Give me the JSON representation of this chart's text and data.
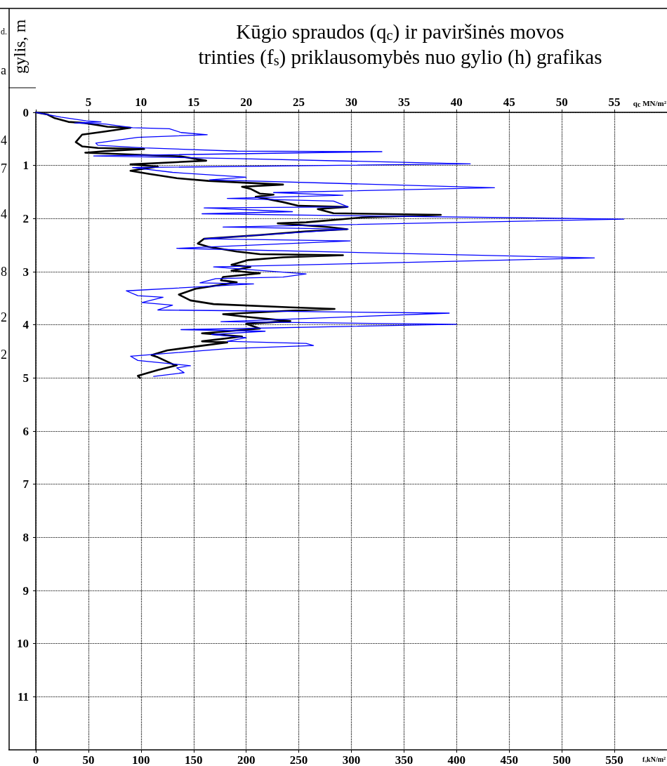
{
  "chart_data": {
    "type": "line",
    "orientation": "horizontal",
    "title": "Kūgio spraudos (q$_{c}$) ir paviršinės movos\ntrinties (f$_{s}$) priklausomybės nuo gylio (h) grafikas",
    "ylabel": "gylis, m",
    "xlabel": "f$_{s}$kN/m²",
    "x2label": "q$_{c}$ MN/m²",
    "annotations": [
      "d.",
      "a",
      "4",
      "7",
      "4",
      "8",
      "2",
      "2"
    ],
    "xlim": [
      0,
      600
    ],
    "xticks": [
      0,
      50,
      100,
      150,
      200,
      250,
      300,
      350,
      400,
      450,
      500,
      550
    ],
    "x2lim": [
      0,
      60
    ],
    "x2ticks": [
      {
        "value": 0,
        "label": null
      },
      5,
      10,
      15,
      20,
      25,
      30,
      35,
      40,
      45,
      50,
      55
    ],
    "ylim": [
      12,
      0
    ],
    "yticks": [
      0,
      1,
      2,
      3,
      4,
      5,
      6,
      7,
      8,
      9,
      10,
      11
    ],
    "grid": true,
    "marker": "none",
    "line_style": "solid",
    "series": [
      {
        "color": "#000000",
        "axis": "x2",
        "x": [
          0,
          0.04,
          0.11,
          0.18,
          0.2,
          0.24,
          0.27,
          0.29,
          0.36,
          0.42,
          0.56,
          0.64,
          0.67,
          0.69,
          0.73,
          0.76,
          0.83,
          0.91,
          0.98,
          1.02,
          1.1,
          1.16,
          1.24,
          1.29,
          1.36,
          1.4,
          1.44,
          1.53,
          1.55,
          1.59,
          1.69,
          1.76,
          1.78,
          1.82,
          1.9,
          1.93,
          1.98,
          2.07,
          2.09,
          2.16,
          2.2,
          2.24,
          2.31,
          2.38,
          2.47,
          2.53,
          2.62,
          2.67,
          2.69,
          2.73,
          2.78,
          2.87,
          2.91,
          2.98,
          3.03,
          3.1,
          3.16,
          3.2,
          3.32,
          3.43,
          3.54,
          3.61,
          3.67,
          3.7,
          3.74,
          3.8,
          3.85,
          3.93,
          3.98,
          4.07,
          4.16,
          4.22,
          4.31,
          4.33,
          4.48,
          4.57,
          4.61,
          4.74,
          4.76,
          4.85,
          4.96,
          5.0
        ],
        "values": [
          0,
          1.1,
          1.8,
          3.1,
          4.6,
          5.9,
          6.8,
          9.0,
          6.6,
          4.4,
          3.8,
          4.4,
          5.9,
          10.3,
          6.6,
          4.7,
          13.8,
          16.2,
          9.0,
          11.6,
          9.0,
          10.8,
          13.4,
          16.4,
          23.5,
          19.6,
          20.4,
          21.3,
          22.6,
          20.9,
          23.5,
          25,
          29.6,
          26.8,
          28.3,
          38.5,
          31,
          25.7,
          23,
          27.9,
          29.6,
          25.7,
          21.3,
          16,
          15.4,
          16.4,
          19.1,
          21.3,
          29.2,
          23.5,
          20.2,
          18.6,
          20.4,
          18.6,
          21.3,
          17.8,
          17.6,
          19.1,
          15.2,
          13.6,
          14.7,
          16.9,
          24.2,
          28.4,
          23.5,
          17.8,
          20,
          24.2,
          20,
          21.3,
          15.8,
          19.6,
          15.8,
          18.2,
          12.5,
          11,
          11.6,
          13,
          13.4,
          11.6,
          9.7,
          9.9
        ]
      },
      {
        "color": "#0000ff",
        "x": [
          0,
          0.09,
          0.16,
          0.18,
          0.2,
          0.22,
          0.29,
          0.31,
          0.38,
          0.42,
          0.47,
          0.58,
          0.62,
          0.67,
          0.73,
          0.74,
          0.82,
          0.87,
          0.97,
          1.04,
          1.13,
          1.22,
          1.27,
          1.42,
          1.51,
          1.56,
          1.62,
          1.67,
          1.78,
          1.8,
          1.87,
          1.91,
          2.01,
          2.16,
          2.2,
          2.38,
          2.42,
          2.56,
          2.74,
          2.91,
          3.04,
          3.1,
          3.13,
          3.21,
          3.23,
          3.36,
          3.45,
          3.48,
          3.58,
          3.63,
          3.72,
          3.73,
          3.78,
          3.94,
          3.99,
          4.09,
          4.12,
          4.18,
          4.24,
          4.31,
          4.35,
          4.39,
          4.45,
          4.59,
          4.67,
          4.77,
          4.81,
          4.9,
          4.97
        ],
        "values": [
          0,
          24,
          48,
          62,
          37,
          66,
          92,
          127,
          138,
          163,
          97,
          57,
          59,
          103,
          191,
          329,
          55,
          191,
          413,
          92,
          130,
          200,
          165,
          436,
          226,
          292,
          182,
          283,
          297,
          160,
          244,
          158,
          559,
          178,
          297,
          160,
          299,
          134,
          531,
          169,
          257,
          235,
          171,
          156,
          207,
          86,
          97,
          121,
          101,
          130,
          116,
          167,
          393,
          176,
          400,
          138,
          218,
          167,
          200,
          182,
          257,
          264,
          182,
          90,
          97,
          147,
          134,
          141,
          112
        ]
      }
    ]
  }
}
